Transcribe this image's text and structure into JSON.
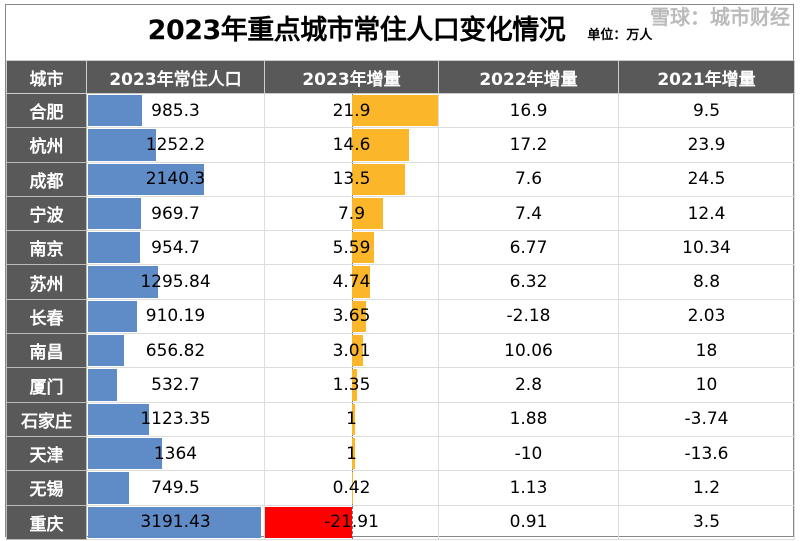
{
  "title": "2023年重点城市常住人口变化情况",
  "unit": "单位：万人",
  "watermark": "雪球：城市财经",
  "colors": {
    "header": "#595959",
    "pop_bar": "#5f8bc7",
    "inc_pos": "#fbb62a",
    "inc_neg": "#ff0000"
  },
  "chart_data": {
    "type": "table",
    "columns": [
      "城市",
      "2023年常住人口",
      "2023年增量",
      "2022年增量",
      "2021年增量"
    ],
    "rows": [
      [
        "合肥",
        "985.3",
        "21.9",
        "16.9",
        "9.5"
      ],
      [
        "杭州",
        "1252.2",
        "14.6",
        "17.2",
        "23.9"
      ],
      [
        "成都",
        "2140.3",
        "13.5",
        "7.6",
        "24.5"
      ],
      [
        "宁波",
        "969.7",
        "7.9",
        "7.4",
        "12.4"
      ],
      [
        "南京",
        "954.7",
        "5.59",
        "6.77",
        "10.34"
      ],
      [
        "苏州",
        "1295.84",
        "4.74",
        "6.32",
        "8.8"
      ],
      [
        "长春",
        "910.19",
        "3.65",
        "-2.18",
        "2.03"
      ],
      [
        "南昌",
        "656.82",
        "3.01",
        "10.06",
        "18"
      ],
      [
        "厦门",
        "532.7",
        "1.35",
        "2.8",
        "10"
      ],
      [
        "石家庄",
        "1123.35",
        "1",
        "1.88",
        "-3.74"
      ],
      [
        "天津",
        "1364",
        "1",
        "-10",
        "-13.6"
      ],
      [
        "无锡",
        "749.5",
        "0.42",
        "1.13",
        "1.2"
      ],
      [
        "重庆",
        "3191.43",
        "-21.91",
        "0.91",
        "3.5"
      ]
    ]
  }
}
